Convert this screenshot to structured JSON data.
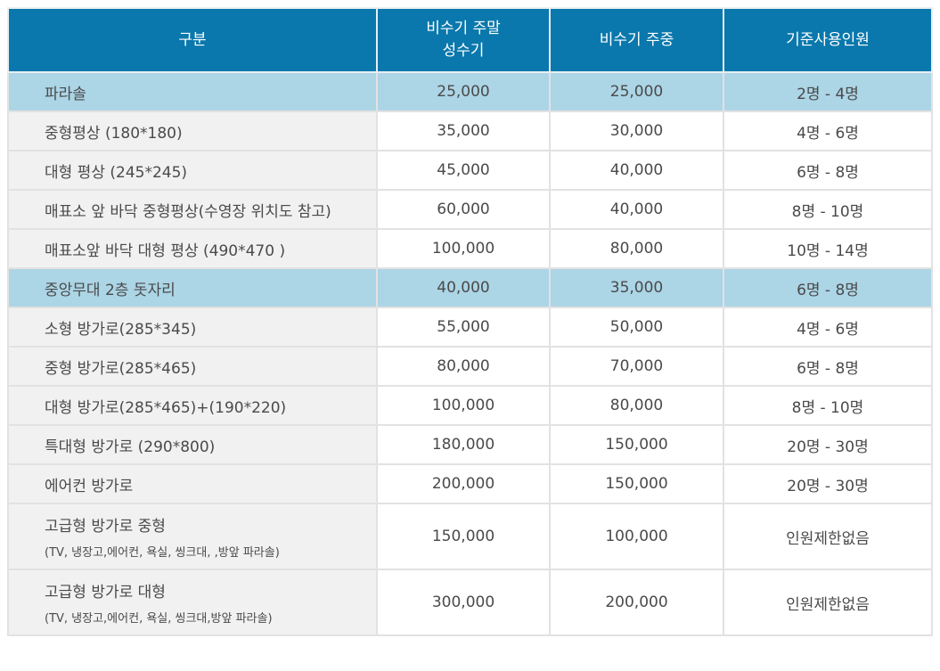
{
  "headers": {
    "col0": "구분",
    "col1_line1": "비수기 주말",
    "col1_line2": "성수기",
    "col2": "비수기 주중",
    "col3": "기준사용인원"
  },
  "rows": [
    {
      "name": "파라솔",
      "sub": "",
      "weekend": "25,000",
      "weekday": "25,000",
      "people": "2명 - 4명",
      "highlight": true
    },
    {
      "name": "중형평상 (180*180)",
      "sub": "",
      "weekend": "35,000",
      "weekday": "30,000",
      "people": "4명 - 6명",
      "highlight": false
    },
    {
      "name": "대형 평상 (245*245)",
      "sub": "",
      "weekend": "45,000",
      "weekday": "40,000",
      "people": "6명 - 8명",
      "highlight": false
    },
    {
      "name": "매표소 앞 바닥 중형평상(수영장 위치도 참고)",
      "sub": "",
      "weekend": "60,000",
      "weekday": "40,000",
      "people": "8명 - 10명",
      "highlight": false
    },
    {
      "name": "매표소앞 바닥 대형 평상 (490*470 )",
      "sub": "",
      "weekend": "100,000",
      "weekday": "80,000",
      "people": "10명 - 14명",
      "highlight": false
    },
    {
      "name": "중앙무대 2층 돗자리",
      "sub": "",
      "weekend": "40,000",
      "weekday": "35,000",
      "people": "6명 - 8명",
      "highlight": true
    },
    {
      "name": "소형 방가로(285*345)",
      "sub": "",
      "weekend": "55,000",
      "weekday": "50,000",
      "people": "4명 - 6명",
      "highlight": false
    },
    {
      "name": "중형 방가로(285*465)",
      "sub": "",
      "weekend": "80,000",
      "weekday": "70,000",
      "people": "6명 - 8명",
      "highlight": false
    },
    {
      "name": "대형 방가로(285*465)+(190*220)",
      "sub": "",
      "weekend": "100,000",
      "weekday": "80,000",
      "people": "8명 - 10명",
      "highlight": false
    },
    {
      "name": "특대형 방가로 (290*800)",
      "sub": "",
      "weekend": "180,000",
      "weekday": "150,000",
      "people": "20명 - 30명",
      "highlight": false
    },
    {
      "name": "에어컨 방가로",
      "sub": "",
      "weekend": "200,000",
      "weekday": "150,000",
      "people": "20명 - 30명",
      "highlight": false
    },
    {
      "name": "고급형 방가로 중형",
      "sub": "(TV, 냉장고,에어컨, 욕실, 씽크대, ,방앞 파라솔)",
      "weekend": "150,000",
      "weekday": "100,000",
      "people": "인원제한없음",
      "highlight": false
    },
    {
      "name": "고급형 방가로 대형",
      "sub": "(TV, 냉장고,에어컨, 욕실, 씽크대,방앞 파라솔)",
      "weekend": "300,000",
      "weekday": "200,000",
      "people": "인원제한없음",
      "highlight": false
    }
  ]
}
